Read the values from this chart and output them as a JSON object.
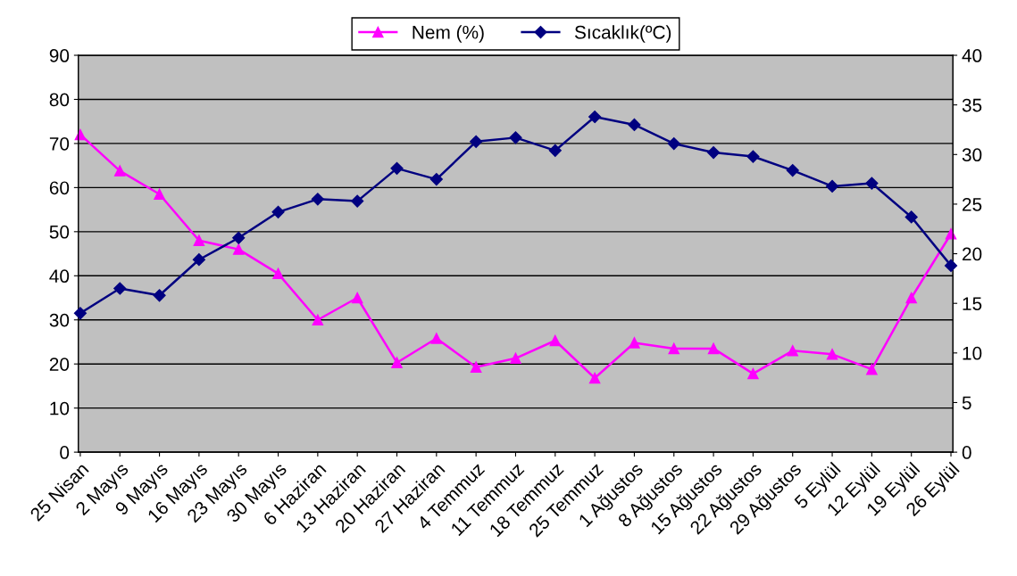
{
  "chart_data": {
    "type": "line",
    "categories": [
      "25 Nisan",
      "2 Mayıs",
      "9 Mayıs",
      "16 Mayıs",
      "23 Mayıs",
      "30 Mayıs",
      "6 Haziran",
      "13 Haziran",
      "20 Haziran",
      "27 Haziran",
      "4 Temmuz",
      "11 Temmuz",
      "18 Temmuz",
      "25 Temmuz",
      "1 Ağustos",
      "8 Ağustos",
      "15 Ağustos",
      "22 Ağustos",
      "29 Ağustos",
      "5 Eylül",
      "12 Eylül",
      "19 Eylül",
      "26 Eylül"
    ],
    "series": [
      {
        "name": "Nem (%)",
        "color": "#ff00ff",
        "marker": "triangle",
        "values": [
          72,
          63.8,
          58.5,
          48,
          46,
          40.5,
          30,
          35,
          20.3,
          25.8,
          19.3,
          21.3,
          25.3,
          16.8,
          24.8,
          23.5,
          23.5,
          17.8,
          23,
          22.2,
          18.8,
          35,
          49.5
        ]
      },
      {
        "name": "Sıcaklık(ºC)",
        "color": "#000080",
        "marker": "diamond",
        "axis": "y2",
        "values": [
          14.0,
          16.5,
          15.8,
          19.4,
          21.6,
          24.2,
          25.5,
          25.3,
          28.6,
          27.5,
          31.3,
          31.7,
          30.4,
          33.8,
          33.0,
          31.1,
          30.2,
          29.8,
          28.4,
          26.8,
          27.1,
          23.7,
          18.8
        ]
      }
    ],
    "ylim": [
      0,
      90
    ],
    "yticks": [
      0,
      10,
      20,
      30,
      40,
      50,
      60,
      70,
      80,
      90
    ],
    "y2lim": [
      0,
      40
    ],
    "y2ticks": [
      0,
      5,
      10,
      15,
      20,
      25,
      30,
      35,
      40
    ],
    "grid": "y",
    "legend": "top"
  }
}
